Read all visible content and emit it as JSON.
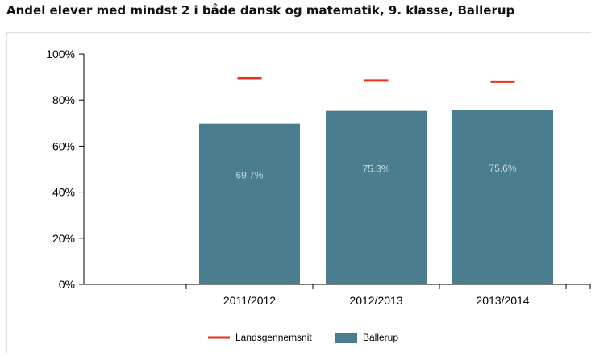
{
  "chart_data": {
    "type": "bar",
    "title": "Andel elever med mindst 2 i både dansk og matematik, 9. klasse, Ballerup",
    "categories": [
      "2011/2012",
      "2012/2013",
      "2013/2014"
    ],
    "ylim": [
      0,
      100
    ],
    "yticks": [
      "0%",
      "20%",
      "40%",
      "60%",
      "80%",
      "100%"
    ],
    "series": [
      {
        "name": "Ballerup",
        "kind": "bar",
        "color": "#4a7d8e",
        "values": [
          69.7,
          75.3,
          75.6
        ],
        "labels": [
          "69.7%",
          "75.3%",
          "75.6%"
        ]
      },
      {
        "name": "Landsgennemsnit",
        "kind": "marker",
        "color": "#e8321e",
        "values": [
          89.5,
          88.5,
          88.0
        ]
      }
    ],
    "grid": false,
    "legend": "bottom"
  }
}
